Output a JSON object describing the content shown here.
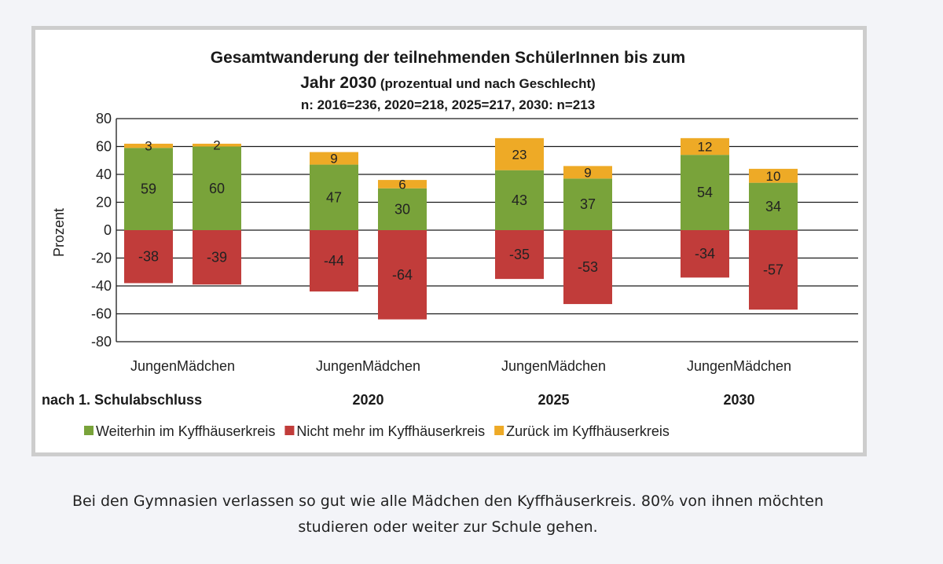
{
  "chart_data": {
    "type": "bar",
    "stacked": true,
    "title_line1": "Gesamtwanderung der teilnehmenden SchülerInnen bis zum",
    "title_line2_bold": "Jahr 2030",
    "title_line2_rest": " (prozentual und nach Geschlecht)",
    "subtitle": "n: 2016=236, 2020=218, 2025=217, 2030: n=213",
    "ylabel": "Prozent",
    "ylim": [
      -80,
      80
    ],
    "yticks": [
      80,
      60,
      40,
      20,
      0,
      -20,
      -40,
      -60,
      -80
    ],
    "grid": true,
    "legend_position": "bottom",
    "groups": [
      {
        "label": "nach 1. Schulabschluss",
        "categories": [
          "Jungen",
          "Mädchen"
        ]
      },
      {
        "label": "2020",
        "categories": [
          "Jungen",
          "Mädchen"
        ]
      },
      {
        "label": "2025",
        "categories": [
          "Jungen",
          "Mädchen"
        ]
      },
      {
        "label": "2030",
        "categories": [
          "Jungen",
          "Mädchen"
        ]
      }
    ],
    "series": [
      {
        "name": "Weiterhin im Kyffhäuserkreis",
        "color": "#79a33a",
        "values": [
          59,
          60,
          47,
          30,
          43,
          37,
          54,
          34
        ]
      },
      {
        "name": "Nicht mehr im Kyffhäuserkreis",
        "color": "#c13c3a",
        "values": [
          -38,
          -39,
          -44,
          -64,
          -35,
          -53,
          -34,
          -57
        ]
      },
      {
        "name": "Zurück im Kyffhäuserkreis",
        "color": "#eeaa26",
        "values": [
          3,
          2,
          9,
          6,
          23,
          9,
          12,
          10
        ]
      }
    ]
  },
  "caption": {
    "line1": "Bei den Gymnasien verlassen so gut wie alle Mädchen den Kyffhäuserkreis. 80% von ihnen möchten",
    "line2": "studieren oder weiter zur Schule gehen."
  }
}
